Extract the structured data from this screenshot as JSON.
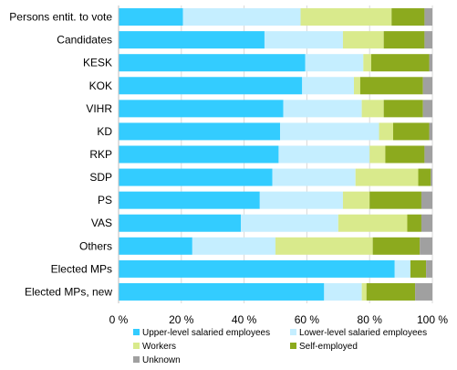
{
  "chart_data": {
    "type": "bar",
    "orientation": "horizontal",
    "stacked": true,
    "categories": [
      "Persons entit. to vote",
      "Candidates",
      "KESK",
      "KOK",
      "VIHR",
      "KD",
      "RKP",
      "SDP",
      "PS",
      "VAS",
      "Others",
      "Elected MPs",
      "Elected MPs, new"
    ],
    "series": [
      {
        "name": "Upper-level salaried employees",
        "color": "#33ccff",
        "values": [
          20.5,
          46.5,
          59.5,
          58.5,
          52.5,
          51.5,
          51,
          49,
          45,
          39,
          23.5,
          88,
          65.5
        ]
      },
      {
        "name": "Lower-level salaried employees",
        "color": "#c5eeff",
        "values": [
          37.5,
          25,
          18.5,
          16.5,
          25,
          31.5,
          29,
          26.5,
          26.5,
          31,
          26.5,
          5,
          12
        ]
      },
      {
        "name": "Workers",
        "color": "#d9ea8c",
        "values": [
          29,
          13,
          2.5,
          2,
          7,
          4.5,
          5,
          20,
          8.5,
          22,
          31,
          0,
          1.5
        ]
      },
      {
        "name": "Self-employed",
        "color": "#8caa1e",
        "values": [
          10.5,
          13,
          18.5,
          20,
          12.5,
          11.5,
          12.5,
          4,
          16.5,
          4.5,
          15,
          5,
          15.5
        ]
      },
      {
        "name": "Unknown",
        "color": "#a0a0a0",
        "values": [
          2.5,
          2.5,
          1,
          3,
          3,
          1,
          2.5,
          0.5,
          3.5,
          3.5,
          4,
          2,
          5.5
        ]
      }
    ],
    "xlim": [
      0,
      100
    ],
    "x_ticks": [
      "0 %",
      "20 %",
      "40 %",
      "60 %",
      "80 %",
      "100 %"
    ],
    "grid": true,
    "legend_position": "bottom"
  }
}
